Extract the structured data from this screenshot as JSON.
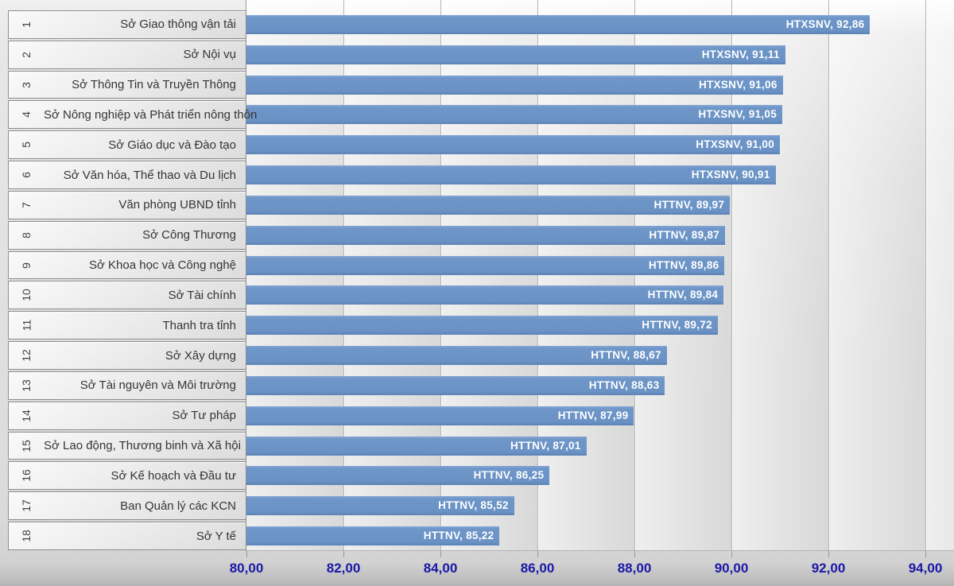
{
  "chart_data": {
    "type": "bar",
    "orientation": "horizontal",
    "title": "",
    "xlabel": "",
    "ylabel": "",
    "legend": null,
    "grid": true,
    "xlim": [
      80,
      94.6
    ],
    "decimal_separator": ",",
    "x_ticks": [
      {
        "value": 80,
        "label": "80,00"
      },
      {
        "value": 82,
        "label": "82,00"
      },
      {
        "value": 84,
        "label": "84,00"
      },
      {
        "value": 86,
        "label": "86,00"
      },
      {
        "value": 88,
        "label": "88,00"
      },
      {
        "value": 90,
        "label": "90,00"
      },
      {
        "value": 92,
        "label": "92,00"
      },
      {
        "value": 94,
        "label": "94,00"
      }
    ],
    "rows": [
      {
        "rank": "1",
        "label": "Sở Giao thông vận tải",
        "group": "HTXSNV",
        "value": 92.86,
        "value_label": "HTXSNV, 92,86"
      },
      {
        "rank": "2",
        "label": "Sở Nội vụ",
        "group": "HTXSNV",
        "value": 91.11,
        "value_label": "HTXSNV, 91,11"
      },
      {
        "rank": "3",
        "label": "Sở Thông Tin và Truyền Thông",
        "group": "HTXSNV",
        "value": 91.06,
        "value_label": "HTXSNV, 91,06"
      },
      {
        "rank": "4",
        "label": "Sở Nông nghiệp và Phát triển nông thôn",
        "group": "HTXSNV",
        "value": 91.05,
        "value_label": "HTXSNV, 91,05"
      },
      {
        "rank": "5",
        "label": "Sở Giáo dục và Đào tạo",
        "group": "HTXSNV",
        "value": 91.0,
        "value_label": "HTXSNV, 91,00"
      },
      {
        "rank": "6",
        "label": "Sở Văn hóa, Thể thao và Du lịch",
        "group": "HTXSNV",
        "value": 90.91,
        "value_label": "HTXSNV, 90,91"
      },
      {
        "rank": "7",
        "label": "Văn phòng UBND tỉnh",
        "group": "HTTNV",
        "value": 89.97,
        "value_label": "HTTNV, 89,97"
      },
      {
        "rank": "8",
        "label": "Sở Công Thương",
        "group": "HTTNV",
        "value": 89.87,
        "value_label": "HTTNV, 89,87"
      },
      {
        "rank": "9",
        "label": "Sở Khoa học và Công nghệ",
        "group": "HTTNV",
        "value": 89.86,
        "value_label": "HTTNV, 89,86"
      },
      {
        "rank": "10",
        "label": "Sở Tài chính",
        "group": "HTTNV",
        "value": 89.84,
        "value_label": "HTTNV, 89,84"
      },
      {
        "rank": "11",
        "label": "Thanh tra tỉnh",
        "group": "HTTNV",
        "value": 89.72,
        "value_label": "HTTNV, 89,72"
      },
      {
        "rank": "12",
        "label": "Sở Xây dựng",
        "group": "HTTNV",
        "value": 88.67,
        "value_label": "HTTNV, 88,67"
      },
      {
        "rank": "13",
        "label": "Sở Tài nguyên và Môi trường",
        "group": "HTTNV",
        "value": 88.63,
        "value_label": "HTTNV, 88,63"
      },
      {
        "rank": "14",
        "label": "Sở Tư pháp",
        "group": "HTTNV",
        "value": 87.99,
        "value_label": "HTTNV, 87,99"
      },
      {
        "rank": "15",
        "label": "Sở Lao động, Thương binh và Xã hội",
        "group": "HTTNV",
        "value": 87.01,
        "value_label": "HTTNV, 87,01"
      },
      {
        "rank": "16",
        "label": "Sở Kế hoạch và Đầu tư",
        "group": "HTTNV",
        "value": 86.25,
        "value_label": "HTTNV, 86,25"
      },
      {
        "rank": "17",
        "label": "Ban Quản lý các KCN",
        "group": "HTTNV",
        "value": 85.52,
        "value_label": "HTTNV, 85,52"
      },
      {
        "rank": "18",
        "label": "Sở Y tế",
        "group": "HTTNV",
        "value": 85.22,
        "value_label": "HTTNV, 85,22"
      }
    ]
  },
  "colors": {
    "bar": "#6B93C6",
    "bar_label_text": "#FFFFFF",
    "axis_tick_text": "#1B18A6",
    "category_text": "#353535",
    "rank_text": "#404040",
    "gridline": "#B4B4B4",
    "cell_border": "#8C8C8C",
    "background": "#DEDEDE"
  }
}
